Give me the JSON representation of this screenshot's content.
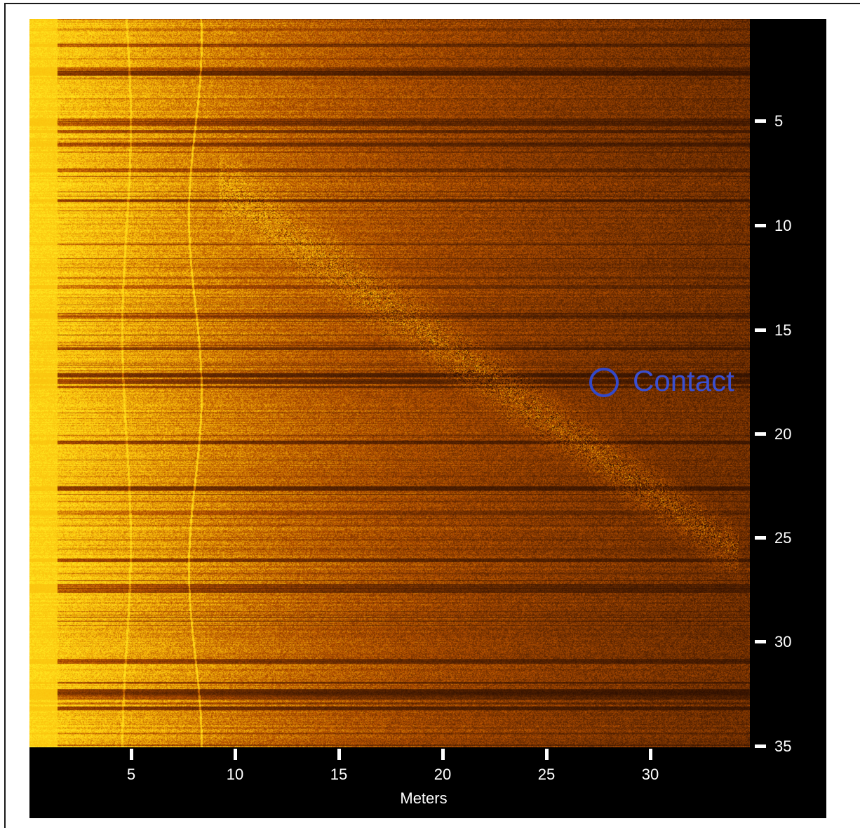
{
  "figure": {
    "contact_label": "Contact",
    "contact_marker_color": "#3348c8",
    "x_axis_title": "Meters",
    "x_ticks": [
      "5",
      "10",
      "15",
      "20",
      "25",
      "30"
    ],
    "y_ticks": [
      "5",
      "10",
      "15",
      "20",
      "25",
      "30",
      "35"
    ],
    "palette": {
      "bright": "#ffd21a",
      "mid": "#b86a0a",
      "dark": "#2a1000"
    }
  }
}
